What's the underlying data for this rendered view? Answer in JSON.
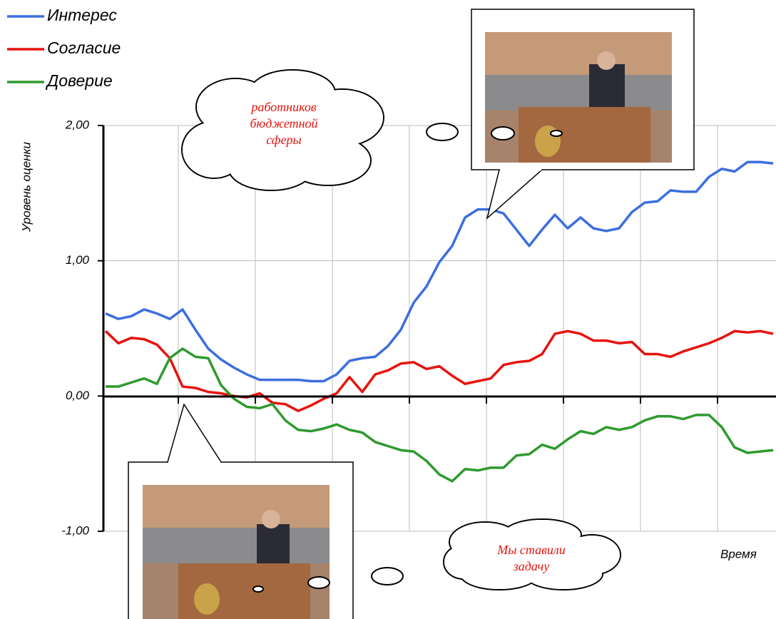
{
  "chart_data": {
    "type": "line",
    "y_label": "Уровень оценки",
    "x_label": "Время",
    "ylim": [
      -1,
      2
    ],
    "yticks": [
      {
        "value": 2,
        "label": "2,00"
      },
      {
        "value": 1,
        "label": "1,00"
      },
      {
        "value": 0,
        "label": "0,00"
      },
      {
        "value": -1,
        "label": "-1,00"
      }
    ],
    "grid": true,
    "legend": "top-left",
    "series": [
      {
        "name": "Интерес",
        "color": "#3c6ee0",
        "values": [
          0.61,
          0.57,
          0.59,
          0.64,
          0.61,
          0.57,
          0.64,
          0.49,
          0.35,
          0.27,
          0.21,
          0.16,
          0.12,
          0.12,
          0.12,
          0.12,
          0.11,
          0.11,
          0.16,
          0.26,
          0.28,
          0.29,
          0.37,
          0.49,
          0.69,
          0.81,
          0.99,
          1.11,
          1.32,
          1.38,
          1.38,
          1.35,
          1.23,
          1.11,
          1.23,
          1.34,
          1.24,
          1.32,
          1.24,
          1.22,
          1.24,
          1.36,
          1.43,
          1.44,
          1.52,
          1.51,
          1.51,
          1.62,
          1.68,
          1.66,
          1.73,
          1.73,
          1.72
        ]
      },
      {
        "name": "Согласие",
        "color": "#e8120c",
        "values": [
          0.48,
          0.39,
          0.43,
          0.42,
          0.38,
          0.28,
          0.07,
          0.06,
          0.03,
          0.02,
          0.0,
          -0.01,
          0.02,
          -0.05,
          -0.06,
          -0.11,
          -0.07,
          -0.02,
          0.02,
          0.14,
          0.03,
          0.16,
          0.19,
          0.24,
          0.25,
          0.2,
          0.22,
          0.15,
          0.09,
          0.11,
          0.13,
          0.23,
          0.25,
          0.26,
          0.31,
          0.46,
          0.48,
          0.46,
          0.41,
          0.41,
          0.39,
          0.4,
          0.31,
          0.31,
          0.29,
          0.33,
          0.36,
          0.39,
          0.43,
          0.48,
          0.47,
          0.48,
          0.46
        ]
      },
      {
        "name": "Доверие",
        "color": "#2e9a2e",
        "values": [
          0.07,
          0.07,
          0.1,
          0.13,
          0.09,
          0.28,
          0.35,
          0.29,
          0.28,
          0.08,
          -0.02,
          -0.08,
          -0.09,
          -0.06,
          -0.18,
          -0.25,
          -0.26,
          -0.24,
          -0.21,
          -0.25,
          -0.27,
          -0.34,
          -0.37,
          -0.4,
          -0.41,
          -0.48,
          -0.58,
          -0.63,
          -0.54,
          -0.55,
          -0.53,
          -0.53,
          -0.44,
          -0.43,
          -0.36,
          -0.39,
          -0.32,
          -0.26,
          -0.28,
          -0.23,
          -0.25,
          -0.23,
          -0.18,
          -0.15,
          -0.15,
          -0.17,
          -0.14,
          -0.14,
          -0.23,
          -0.38,
          -0.42,
          -0.41,
          -0.4
        ]
      }
    ],
    "annotations": [
      {
        "lines": [
          "работников",
          "бюджетной",
          "сферы"
        ]
      },
      {
        "lines": [
          "Мы ставили",
          "задачу"
        ]
      }
    ]
  }
}
